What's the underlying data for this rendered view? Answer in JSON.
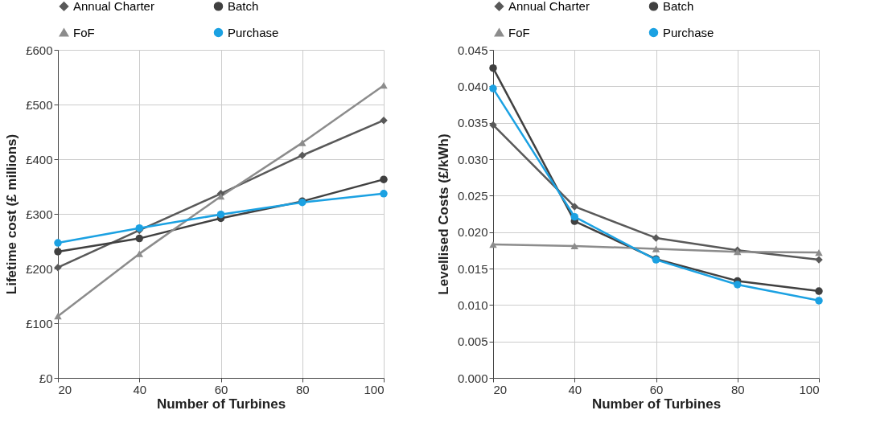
{
  "chart_data": [
    {
      "type": "line",
      "xlabel": "Number of Turbines",
      "ylabel": "Lifetime cost  (£ millions)",
      "x": [
        20,
        40,
        60,
        80,
        100
      ],
      "xlim": [
        20,
        100
      ],
      "xticks": [
        20,
        40,
        60,
        80,
        100
      ],
      "ylim": [
        0,
        600
      ],
      "yticks": [
        {
          "value": 0,
          "label": "£0"
        },
        {
          "value": 100,
          "label": "£100"
        },
        {
          "value": 200,
          "label": "£200"
        },
        {
          "value": 300,
          "label": "£300"
        },
        {
          "value": 400,
          "label": "£400"
        },
        {
          "value": 500,
          "label": "£500"
        },
        {
          "value": 600,
          "label": "£600"
        }
      ],
      "grid": true,
      "legend": "top",
      "series": [
        {
          "name": "Annual Charter",
          "color": "#595959",
          "marker": "diamond",
          "values": [
            202,
            270,
            337,
            407,
            471
          ]
        },
        {
          "name": "Batch",
          "color": "#404040",
          "marker": "circle",
          "values": [
            231,
            255,
            292,
            323,
            363
          ]
        },
        {
          "name": "FoF",
          "color": "#8c8c8c",
          "marker": "triangle",
          "values": [
            113,
            227,
            332,
            430,
            535
          ]
        },
        {
          "name": "Purchase",
          "color": "#1ba1e2",
          "marker": "circle",
          "values": [
            247,
            274,
            299,
            321,
            337
          ]
        }
      ]
    },
    {
      "type": "line",
      "xlabel": "Number of Turbines",
      "ylabel": "Levellised Costs (£/kWh)",
      "x": [
        20,
        40,
        60,
        80,
        100
      ],
      "xlim": [
        20,
        100
      ],
      "xticks": [
        20,
        40,
        60,
        80,
        100
      ],
      "ylim": [
        0,
        0.045
      ],
      "yticks": [
        {
          "value": 0,
          "label": "0.000"
        },
        {
          "value": 0.005,
          "label": "0.005"
        },
        {
          "value": 0.01,
          "label": "0.010"
        },
        {
          "value": 0.015,
          "label": "0.015"
        },
        {
          "value": 0.02,
          "label": "0.020"
        },
        {
          "value": 0.025,
          "label": "0.025"
        },
        {
          "value": 0.03,
          "label": "0.030"
        },
        {
          "value": 0.035,
          "label": "0.035"
        },
        {
          "value": 0.04,
          "label": "0.040"
        },
        {
          "value": 0.045,
          "label": "0.045"
        }
      ],
      "grid": true,
      "legend": "top",
      "series": [
        {
          "name": "Annual Charter",
          "color": "#595959",
          "marker": "diamond",
          "values": [
            0.0347,
            0.0235,
            0.0192,
            0.0175,
            0.0162
          ]
        },
        {
          "name": "Batch",
          "color": "#404040",
          "marker": "circle",
          "values": [
            0.0425,
            0.0215,
            0.0163,
            0.0133,
            0.0119
          ]
        },
        {
          "name": "FoF",
          "color": "#8c8c8c",
          "marker": "triangle",
          "values": [
            0.0183,
            0.0181,
            0.0177,
            0.0173,
            0.0172
          ]
        },
        {
          "name": "Purchase",
          "color": "#1ba1e2",
          "marker": "circle",
          "values": [
            0.0397,
            0.0221,
            0.0162,
            0.0128,
            0.0106
          ]
        }
      ]
    }
  ]
}
